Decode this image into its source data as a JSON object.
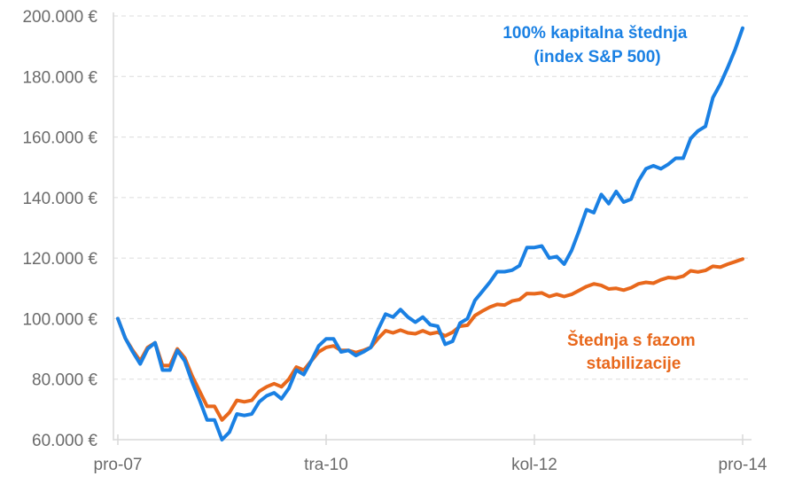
{
  "chart_data": {
    "type": "line",
    "title": "",
    "xlabel": "",
    "ylabel": "",
    "ylim": [
      60000,
      200000
    ],
    "y_ticks": [
      "60.000 €",
      "80.000 €",
      "100.000 €",
      "120.000 €",
      "140.000 €",
      "160.000 €",
      "180.000 €",
      "200.000 €"
    ],
    "y_tick_values": [
      60000,
      80000,
      100000,
      120000,
      140000,
      160000,
      180000,
      200000
    ],
    "x_ticks": [
      {
        "label": "pro-07",
        "index": 0
      },
      {
        "label": "tra-10",
        "index": 28
      },
      {
        "label": "kol-12",
        "index": 56
      },
      {
        "label": "pro-14",
        "index": 84
      }
    ],
    "x_unit": "monthly, Dec 2007 – Dec 2014",
    "grid": true,
    "series": [
      {
        "name": "100% kapitalna štednja (index S&P 500)",
        "label_lines": [
          "100% kapitalna štednja",
          "(index S&P 500)"
        ],
        "color": "#1a80e3",
        "values": [
          100,
          93.5,
          89,
          85,
          90,
          92,
          83,
          83,
          89.5,
          86,
          79,
          73,
          66.5,
          66.5,
          60,
          62.5,
          68.5,
          68,
          68.5,
          72.5,
          74.5,
          75.5,
          73.5,
          77,
          83,
          81.5,
          86,
          91,
          93.3,
          93.3,
          89,
          89.5,
          87.8,
          89,
          90.5,
          96.5,
          101.5,
          100.5,
          103,
          100.5,
          98.8,
          100.5,
          98,
          97.5,
          91.5,
          92.5,
          98.5,
          100,
          106,
          109,
          112,
          115.5,
          115.5,
          116,
          117.5,
          123.5,
          123.5,
          124,
          120,
          120.5,
          118,
          122.5,
          129,
          136,
          135,
          141,
          138,
          142,
          138.5,
          139.5,
          145.5,
          149.5,
          150.5,
          149.5,
          151,
          153,
          153,
          159.5,
          162,
          163.5,
          173,
          177.5,
          183,
          189,
          196
        ]
      },
      {
        "name": "Štednja s fazom stabilizacije",
        "label_lines": [
          "Štednja s fazom",
          "stabilizacije"
        ],
        "color": "#e8681c",
        "values": [
          100,
          93.5,
          89.5,
          86,
          90.5,
          92,
          84.5,
          84.5,
          90,
          87,
          81,
          76,
          71,
          71,
          66.5,
          69,
          73,
          72.5,
          73,
          76,
          77.5,
          78.5,
          77.5,
          80,
          84,
          83,
          86,
          89,
          90.5,
          91,
          89.5,
          89.5,
          88.8,
          89.5,
          90.5,
          93.5,
          96,
          95.3,
          96.2,
          95.3,
          95,
          96,
          95,
          95.5,
          94.3,
          95.5,
          97.5,
          97.8,
          101,
          102.5,
          103.8,
          104.7,
          104.5,
          105.8,
          106.3,
          108.3,
          108.2,
          108.5,
          107.3,
          108,
          107.3,
          108,
          109.3,
          110.6,
          111.5,
          111,
          109.8,
          110,
          109.4,
          110.2,
          111.5,
          112,
          111.7,
          112.8,
          113.6,
          113.4,
          114,
          115.8,
          115.4,
          115.9,
          117.3,
          117,
          118,
          118.8,
          119.7
        ]
      }
    ],
    "value_scale": 1000
  }
}
